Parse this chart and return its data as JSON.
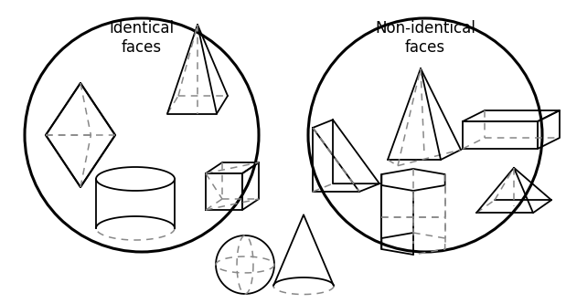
{
  "left_label": "Identical\nfaces",
  "right_label": "Non-identical\nfaces",
  "background": "#ffffff",
  "line_color": "#000000",
  "dashed_color": "#888888"
}
